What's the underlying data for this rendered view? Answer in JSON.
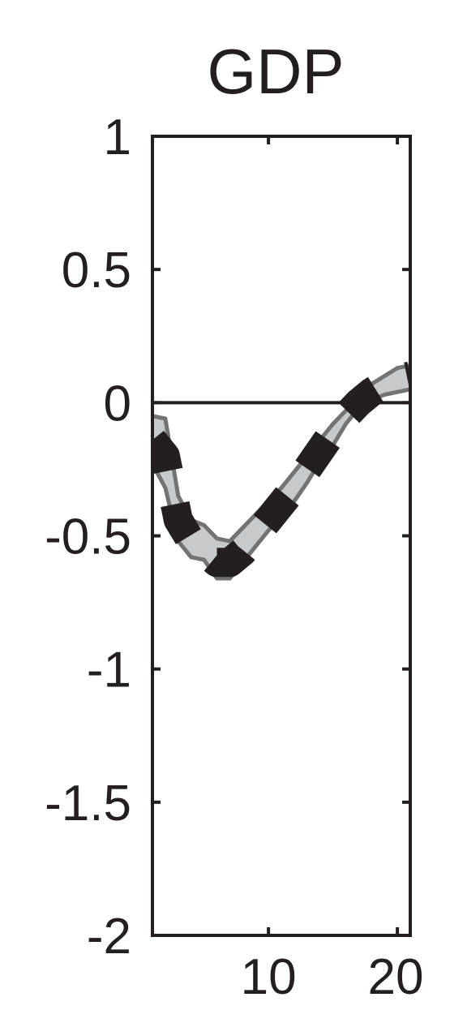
{
  "chart_data": {
    "type": "line",
    "title": "GDP",
    "xlabel": "",
    "ylabel": "",
    "xlim": [
      1,
      21
    ],
    "ylim": [
      -2,
      1
    ],
    "x_ticks": [
      10,
      20
    ],
    "y_ticks": [
      1,
      0.5,
      0,
      -0.5,
      -1,
      -1.5,
      -2
    ],
    "x_tick_labels": [
      "10",
      "20"
    ],
    "y_tick_labels": [
      "1",
      "0.5",
      "0",
      "-0.5",
      "-1",
      "-1.5",
      "-2"
    ],
    "grid": false,
    "zero_line": true,
    "x": [
      1,
      2,
      3,
      4,
      5,
      6,
      7,
      8,
      9,
      10,
      11,
      12,
      13,
      14,
      15,
      16,
      17,
      18,
      19,
      20,
      21
    ],
    "series": [
      {
        "role": "median",
        "style": "dashed",
        "color": "#231f20",
        "values": [
          -0.14,
          -0.2,
          -0.44,
          -0.52,
          -0.56,
          -0.6,
          -0.6,
          -0.56,
          -0.5,
          -0.44,
          -0.38,
          -0.32,
          -0.25,
          -0.18,
          -0.11,
          -0.05,
          0.0,
          0.04,
          0.07,
          0.09,
          0.1
        ]
      },
      {
        "role": "band_upper",
        "color": "#737373",
        "values": [
          -0.05,
          -0.06,
          -0.35,
          -0.44,
          -0.46,
          -0.51,
          -0.52,
          -0.47,
          -0.42,
          -0.37,
          -0.32,
          -0.26,
          -0.2,
          -0.14,
          -0.08,
          -0.03,
          0.02,
          0.07,
          0.1,
          0.13,
          0.14
        ]
      },
      {
        "role": "band_lower",
        "color": "#737373",
        "values": [
          -0.23,
          -0.32,
          -0.52,
          -0.58,
          -0.59,
          -0.66,
          -0.66,
          -0.6,
          -0.54,
          -0.48,
          -0.43,
          -0.37,
          -0.3,
          -0.22,
          -0.16,
          -0.08,
          -0.02,
          0.01,
          0.03,
          0.04,
          0.05
        ]
      }
    ],
    "colors": {
      "band_fill": "#c8c9ca",
      "band_edge": "#737373",
      "axis": "#231f20",
      "median": "#231f20"
    }
  }
}
